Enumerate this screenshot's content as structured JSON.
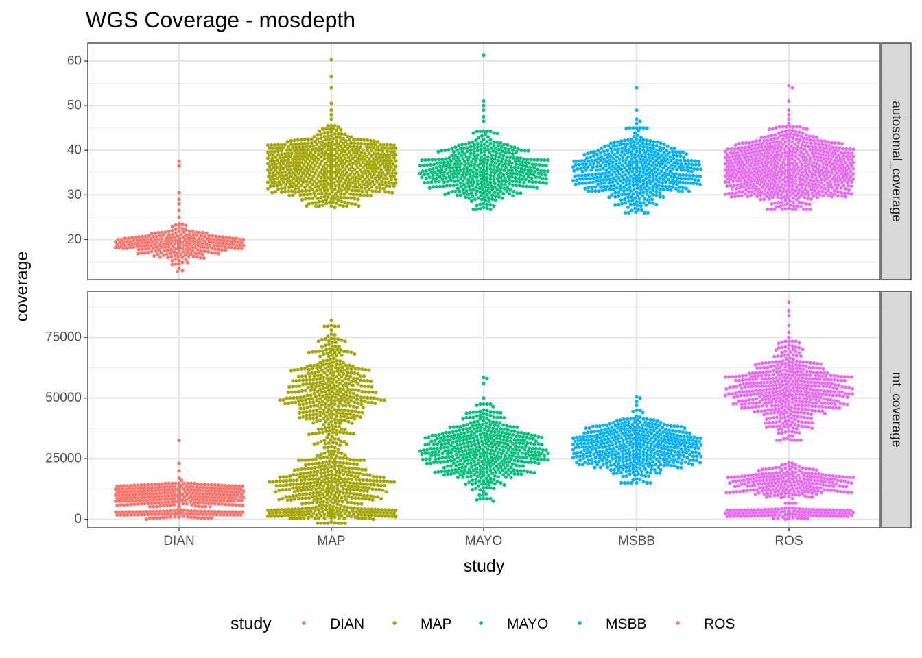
{
  "chart_data": {
    "type": "scatter",
    "subtype": "beeswarm",
    "title": "WGS Coverage - mosdepth",
    "xlabel": "study",
    "ylabel": "coverage",
    "categories": [
      "DIAN",
      "MAP",
      "MAYO",
      "MSBB",
      "ROS"
    ],
    "colors": {
      "DIAN": "#F8766D",
      "MAP": "#A3A500",
      "MAYO": "#00BF7D",
      "MSBB": "#00B0F6",
      "ROS": "#E76BF3"
    },
    "legend": {
      "title": "study",
      "position": "bottom",
      "entries": [
        "DIAN",
        "MAP",
        "MAYO",
        "MSBB",
        "ROS"
      ]
    },
    "grid": true,
    "panels": [
      {
        "name": "autosomal_coverage",
        "ylim": [
          11,
          64
        ],
        "yticks": [
          20,
          30,
          40,
          50,
          60
        ],
        "ytick_labels": [
          "20",
          "30",
          "40",
          "50",
          "60"
        ],
        "series": [
          {
            "name": "DIAN",
            "count": 1200,
            "distribution": "peaked",
            "center": 19,
            "spread": 1.1,
            "tails_low": [
              16.5,
              15.5,
              14.5,
              13.5,
              13,
              12.8
            ],
            "tails_high": [
              23.5,
              25,
              26.5,
              28,
              29,
              30.5,
              37.5,
              36.5
            ]
          },
          {
            "name": "MAP",
            "count": 1100,
            "distribution": "normal",
            "center": 36.5,
            "spread": 3.6,
            "tails_low": [
              27.5,
              27.2
            ],
            "tails_high": [
              47,
              48,
              49,
              50.5,
              54,
              56.5,
              60.3
            ]
          },
          {
            "name": "MAYO",
            "count": 520,
            "distribution": "normal",
            "center": 35.5,
            "spread": 3.5,
            "tails_low": [
              27.5,
              27.2
            ],
            "tails_high": [
              46.5,
              47.5,
              49,
              50,
              51,
              61.3
            ]
          },
          {
            "name": "MSBB",
            "count": 560,
            "distribution": "normal",
            "center": 35.5,
            "spread": 3.8,
            "tails_low": [
              27.5,
              27
            ],
            "tails_high": [
              46,
              46.5,
              47,
              49,
              54
            ]
          },
          {
            "name": "ROS",
            "count": 1150,
            "distribution": "normal",
            "center": 36,
            "spread": 3.7,
            "tails_low": [
              27.5,
              27.3
            ],
            "tails_high": [
              46,
              47,
              48,
              49,
              51,
              54,
              54.5
            ]
          }
        ]
      },
      {
        "name": "mt_coverage",
        "ylim": [
          -3500,
          94000
        ],
        "yticks": [
          0,
          25000,
          50000,
          75000
        ],
        "ytick_labels": [
          "0",
          "25000",
          "50000",
          "75000"
        ],
        "series": [
          {
            "name": "DIAN",
            "count": 1200,
            "distribution": "mixture",
            "components": [
              {
                "center": 10000,
                "spread": 2000,
                "weight": 0.78
              },
              {
                "center": 2200,
                "spread": 700,
                "weight": 0.22
              }
            ],
            "tails_low": [
              0,
              500
            ],
            "tails_high": [
              16000,
              17000,
              20000,
              23000,
              32500
            ]
          },
          {
            "name": "MAP",
            "count": 1100,
            "distribution": "mixture",
            "components": [
              {
                "center": 2500,
                "spread": 900,
                "weight": 0.28
              },
              {
                "center": 14000,
                "spread": 6500,
                "weight": 0.32
              },
              {
                "center": 52000,
                "spread": 11500,
                "weight": 0.4
              }
            ],
            "tails_low": [
              0
            ],
            "tails_high": [
              78000,
              80000,
              82000
            ]
          },
          {
            "name": "MAYO",
            "count": 520,
            "distribution": "normal",
            "center": 28000,
            "spread": 7800,
            "tails_low": [
              8000,
              7500
            ],
            "tails_high": [
              50000,
              56000,
              58000,
              58500
            ]
          },
          {
            "name": "MSBB",
            "count": 560,
            "distribution": "normal",
            "center": 30000,
            "spread": 6000,
            "tails_low": [
              15500,
              15000
            ],
            "tails_high": [
              47000,
              48500,
              50000,
              50500
            ]
          },
          {
            "name": "ROS",
            "count": 1150,
            "distribution": "mixture",
            "components": [
              {
                "center": 2500,
                "spread": 900,
                "weight": 0.33
              },
              {
                "center": 15000,
                "spread": 3500,
                "weight": 0.22
              },
              {
                "center": 53000,
                "spread": 8500,
                "weight": 0.45
              }
            ],
            "tails_low": [
              0
            ],
            "tails_high": [
              73000,
              75000,
              77000,
              80000,
              84000,
              86000,
              89500
            ]
          }
        ]
      }
    ]
  }
}
